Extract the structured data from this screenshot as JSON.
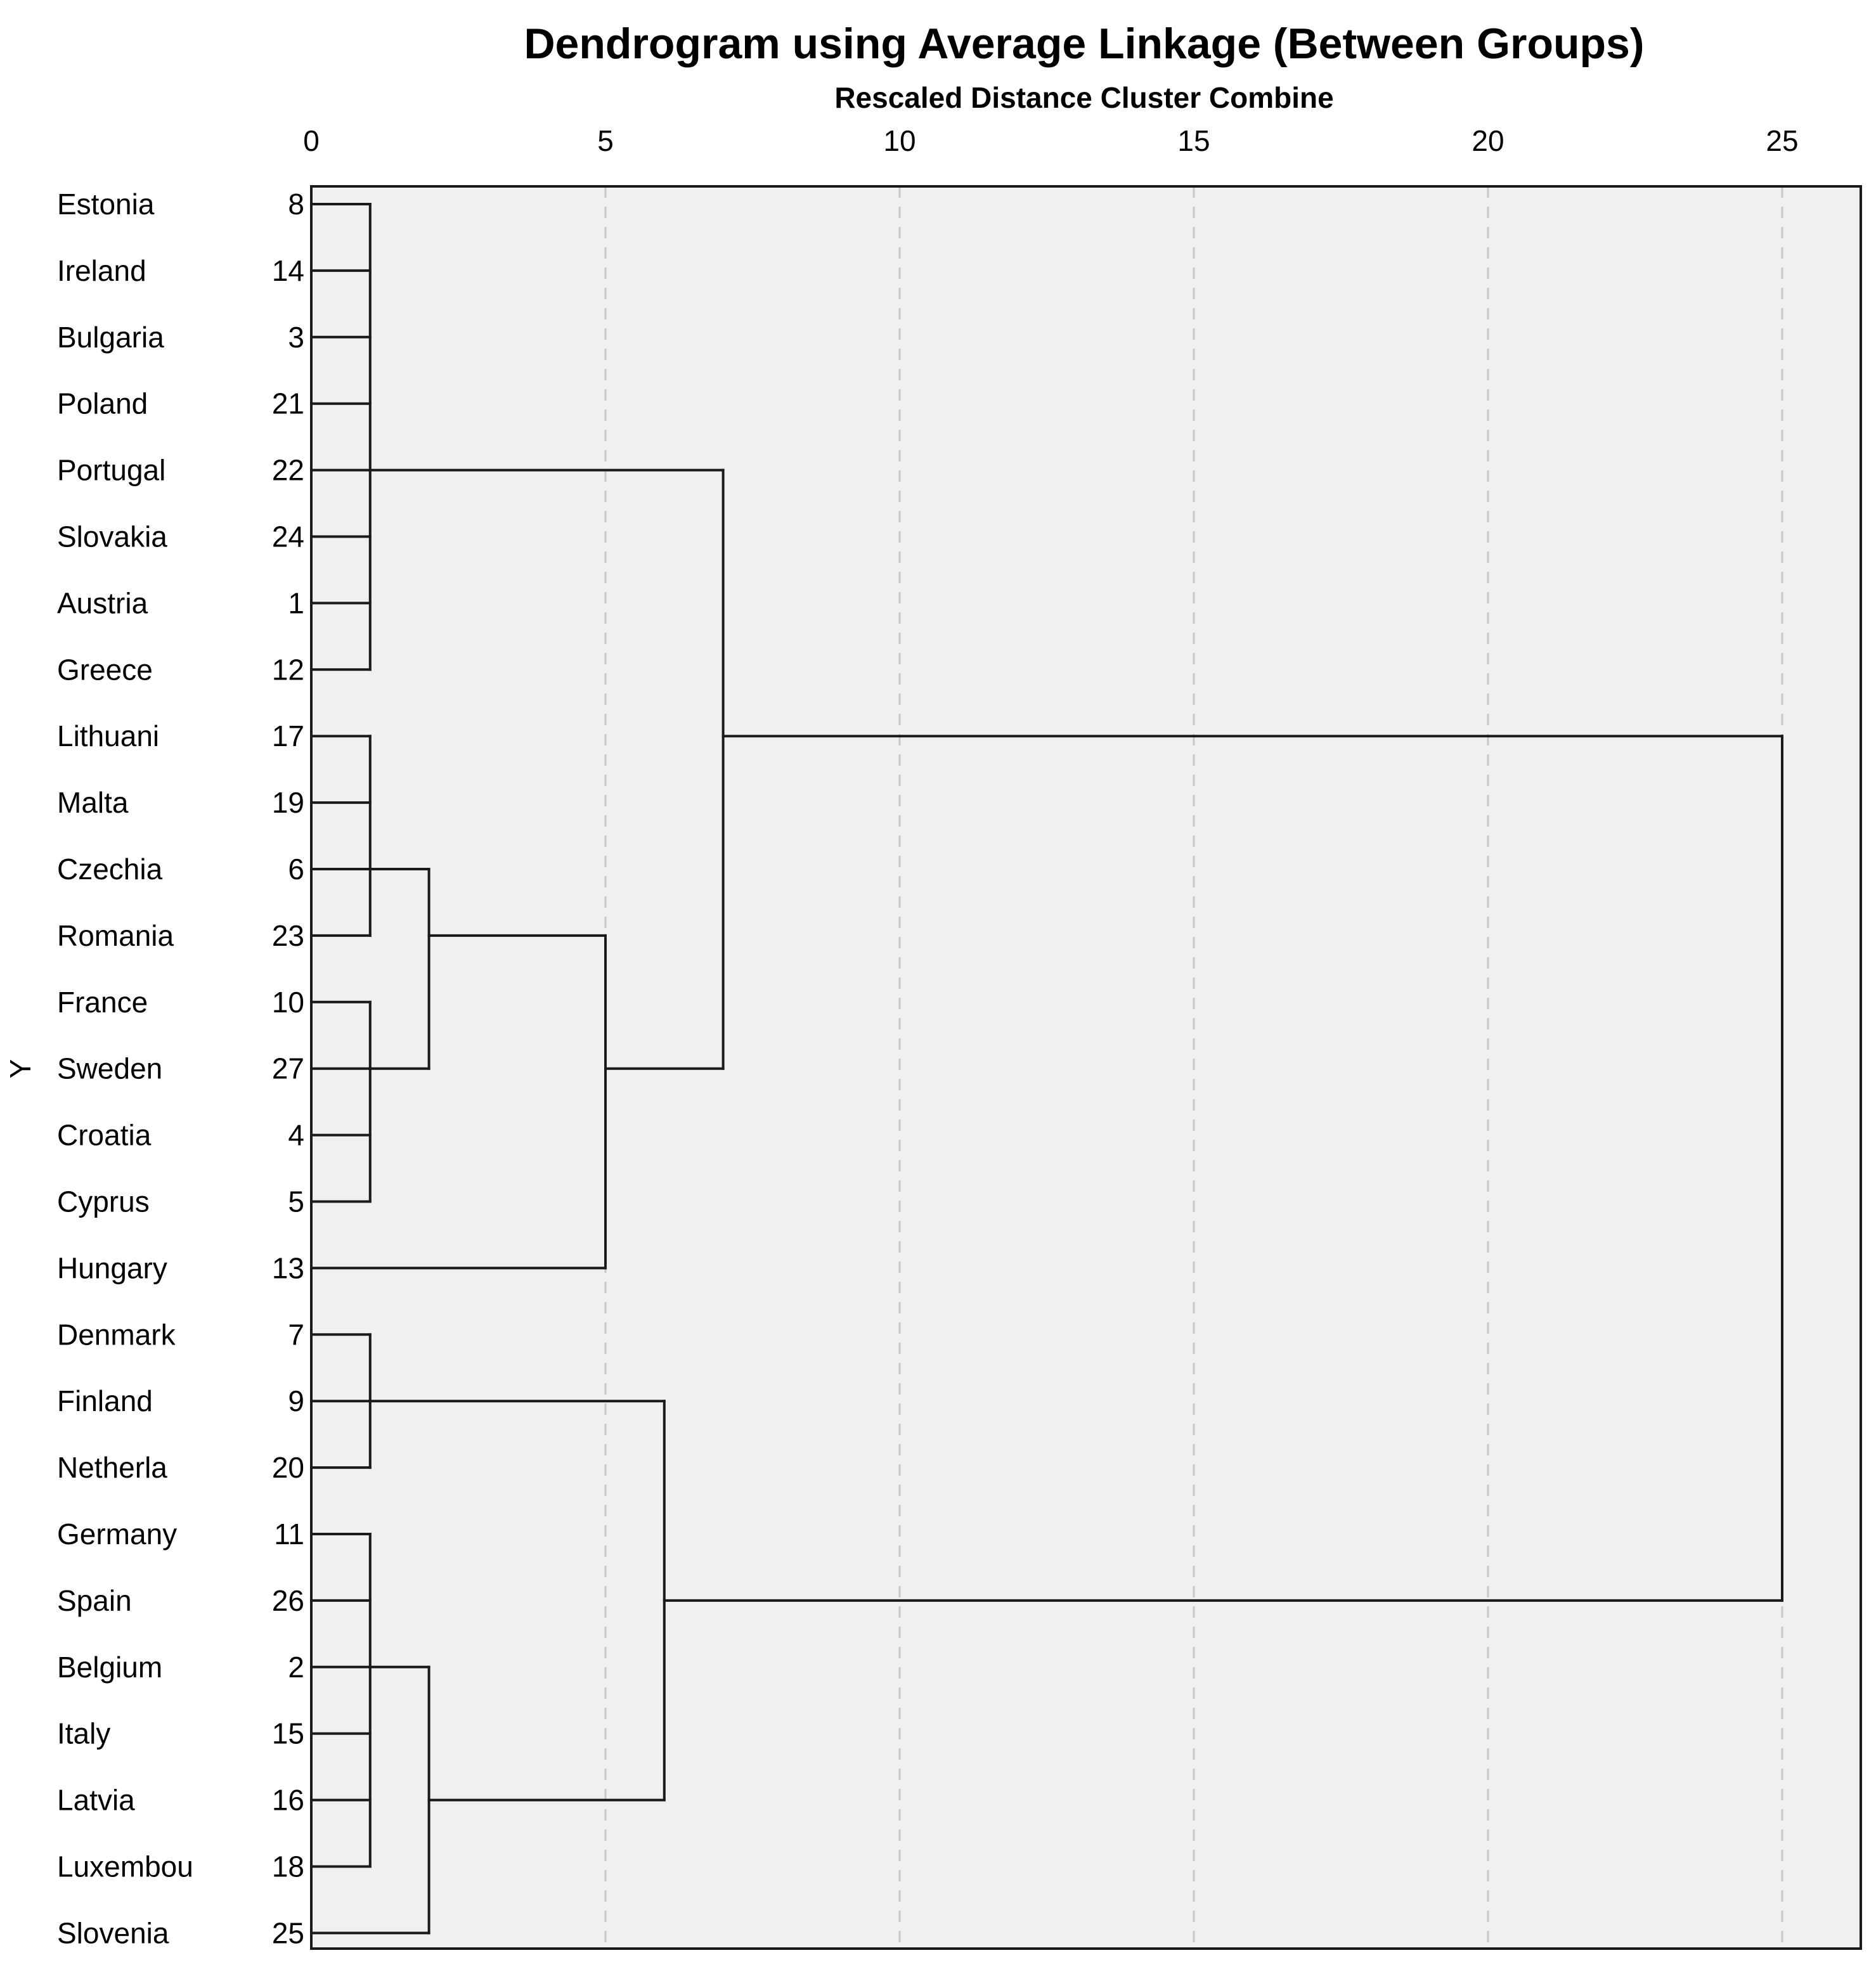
{
  "chart_data": {
    "type": "dendrogram",
    "title": "Dendrogram using Average Linkage (Between Groups)",
    "xlabel": "Rescaled Distance Cluster Combine",
    "ylabel": "Y",
    "xlim": [
      0,
      25
    ],
    "xticks": [
      0,
      5,
      10,
      15,
      20,
      25
    ],
    "grid": true,
    "leaves": [
      {
        "label": "Estonia",
        "case": "8"
      },
      {
        "label": "Ireland",
        "case": "14"
      },
      {
        "label": "Bulgaria",
        "case": "3"
      },
      {
        "label": "Poland",
        "case": "21"
      },
      {
        "label": "Portugal",
        "case": "22"
      },
      {
        "label": "Slovakia",
        "case": "24"
      },
      {
        "label": "Austria",
        "case": "1"
      },
      {
        "label": "Greece",
        "case": "12"
      },
      {
        "label": "Lithuani",
        "case": "17"
      },
      {
        "label": "Malta",
        "case": "19"
      },
      {
        "label": "Czechia",
        "case": "6"
      },
      {
        "label": "Romania",
        "case": "23"
      },
      {
        "label": "France",
        "case": "10"
      },
      {
        "label": "Sweden",
        "case": "27"
      },
      {
        "label": "Croatia",
        "case": "4"
      },
      {
        "label": "Cyprus",
        "case": "5"
      },
      {
        "label": "Hungary",
        "case": "13"
      },
      {
        "label": "Denmark",
        "case": "7"
      },
      {
        "label": "Finland",
        "case": "9"
      },
      {
        "label": "Netherla",
        "case": "20"
      },
      {
        "label": "Germany",
        "case": "11"
      },
      {
        "label": "Spain",
        "case": "26"
      },
      {
        "label": "Belgium",
        "case": "2"
      },
      {
        "label": "Italy",
        "case": "15"
      },
      {
        "label": "Latvia",
        "case": "16"
      },
      {
        "label": "Luxembou",
        "case": "18"
      },
      {
        "label": "Slovenia",
        "case": "25"
      }
    ],
    "merges": [
      {
        "id": "A",
        "height": 1,
        "leaves": [
          0,
          1,
          2,
          3,
          4,
          5,
          6,
          7
        ],
        "attach": 4
      },
      {
        "id": "B",
        "height": 1,
        "leaves": [
          8,
          9,
          10,
          11
        ],
        "attach": 10
      },
      {
        "id": "C",
        "height": 1,
        "leaves": [
          12,
          13,
          14,
          15
        ],
        "attach": 13
      },
      {
        "id": "D",
        "height": 2,
        "children": [
          "B",
          "C"
        ],
        "attach": 11
      },
      {
        "id": "E",
        "height": 5,
        "children": [
          "D",
          16
        ],
        "attach": 13
      },
      {
        "id": "F",
        "height": 7,
        "children": [
          "A",
          "E"
        ],
        "attach": 8
      },
      {
        "id": "G",
        "height": 1,
        "leaves": [
          17,
          18,
          19
        ],
        "attach": 18
      },
      {
        "id": "H",
        "height": 1,
        "leaves": [
          20,
          21,
          22,
          23,
          24,
          25
        ],
        "attach": 22
      },
      {
        "id": "I",
        "height": 2,
        "children": [
          "H",
          26
        ],
        "attach": 24
      },
      {
        "id": "J",
        "height": 6,
        "children": [
          "G",
          "I"
        ],
        "attach": 21
      },
      {
        "id": "K",
        "height": 25,
        "children": [
          "F",
          "J"
        ],
        "attach": null
      }
    ]
  }
}
